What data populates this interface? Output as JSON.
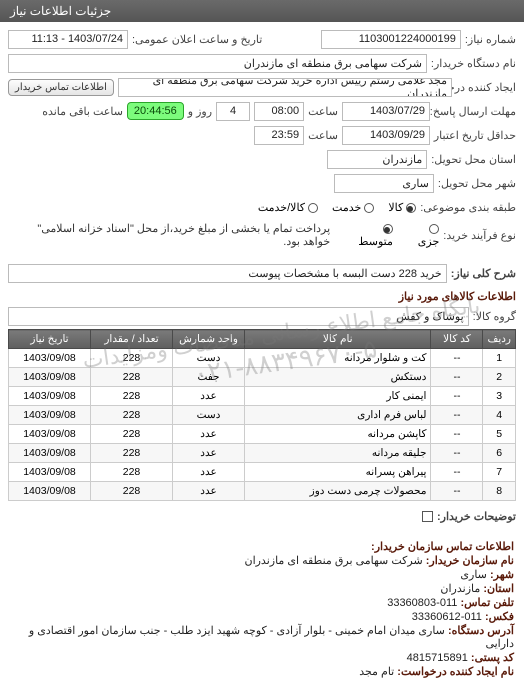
{
  "header": {
    "title": "جزئیات اطلاعات نیاز"
  },
  "top": {
    "need_no_label": "شماره نیاز:",
    "need_no": "1103001224000199",
    "announce_label": "تاریخ و ساعت اعلان عمومی:",
    "announce_value": "1403/07/24 - 11:13",
    "buyer_org_label": "نام دستگاه خریدار:",
    "buyer_org_value": "شرکت سهامی برق منطقه ای مازندران",
    "creator_label": "ایجاد کننده درخواست:",
    "creator_value": "مجد غلامی رستم رییس اداره خرید شرکت سهامی برق منطقه ای مازندران",
    "contact_btn": "اطلاعات تماس خریدار",
    "deadline_send_label": "مهلت ارسال پاسخ: تا تاریخ:",
    "deadline_date": "1403/07/29",
    "time_label": "ساعت",
    "deadline_time": "08:00",
    "remaining_days": "4",
    "remaining_days_suffix": "روز و",
    "remaining_time": "20:44:56",
    "remaining_suffix": "ساعت باقی مانده",
    "validity_label": "حداقل تاریخ اعتبار قیمت: تا تاریخ:",
    "validity_date": "1403/09/29",
    "validity_time": "23:59",
    "province_label": "استان محل تحویل:",
    "province_value": "مازندران",
    "city_label": "شهر محل تحویل:",
    "city_value": "ساری",
    "subject_cat_label": "طبقه بندی موضوعی:",
    "subject_opts": {
      "kala": "کالا",
      "khadamat": "خدمت",
      "kalakhadamat": "کالا/خدمت"
    },
    "buy_type_label": "نوع فرآیند خرید:",
    "buy_type_opts": {
      "jozi": "جزی",
      "motavaset": "متوسط"
    },
    "pay_note": "پرداخت تمام یا بخشی از مبلغ خرید،از محل \"اسناد خزانه اسلامی\" خواهد بود."
  },
  "need": {
    "title_label": "شرح کلی نیاز:",
    "title_value": "خرید 228 دست البسه با مشخصات پیوست",
    "goods_header": "اطلاعات کالاهای مورد نیاز",
    "group_label": "گروه کالا:",
    "group_value": "پوشاک و کفش",
    "table": {
      "columns": [
        "ردیف",
        "کد کالا",
        "نام کالا",
        "واحد شمارش",
        "تعداد / مقدار",
        "تاریخ نیاز"
      ],
      "col_widths": [
        "32px",
        "52px",
        "auto",
        "72px",
        "82px",
        "82px"
      ],
      "rows": [
        [
          "1",
          "--",
          "کت و شلوار مردانه",
          "دست",
          "228",
          "1403/09/08"
        ],
        [
          "2",
          "--",
          "دستکش",
          "جفت",
          "228",
          "1403/09/08"
        ],
        [
          "3",
          "--",
          "ایمنی کار",
          "عدد",
          "228",
          "1403/09/08"
        ],
        [
          "4",
          "--",
          "لباس فرم اداری",
          "دست",
          "228",
          "1403/09/08"
        ],
        [
          "5",
          "--",
          "کاپشن مردانه",
          "عدد",
          "228",
          "1403/09/08"
        ],
        [
          "6",
          "--",
          "جلیقه مردانه",
          "عدد",
          "228",
          "1403/09/08"
        ],
        [
          "7",
          "--",
          "پیراهن پسرانه",
          "عدد",
          "228",
          "1403/09/08"
        ],
        [
          "8",
          "--",
          "محصولات چرمی دست دوز",
          "عدد",
          "228",
          "1403/09/08"
        ]
      ]
    },
    "buyer_notes_label": "توضیحات خریدار:"
  },
  "watermark": {
    "line1": "پایگاه جامع اطلاع رسانی مناقصات ومزایدات",
    "line2": "۰۲۱-۸۸۳۴۹۶۷۰-۵"
  },
  "footer": {
    "heading": "اطلاعات تماس سازمان خریدار:",
    "org_name_label": "نام سازمان خریدار:",
    "org_name": "شرکت سهامی برق منطقه ای مازندران",
    "city_label": "شهر:",
    "city": "ساری",
    "province_label": "استان:",
    "province": "مازندران",
    "phone_label": "تلفن تماس:",
    "phone": "011-33360803",
    "fax_label": "فکس:",
    "fax": "011-33360612",
    "address_label": "آدرس دستگاه:",
    "address": "ساری میدان امام خمینی - بلوار آزادی - کوچه شهید ایزد طلب - جنب سازمان امور اقتصادی و دارایی",
    "postal_label": "کد پستی:",
    "postal": "4815715891",
    "req_creator_label": "نام ایجاد کننده درخواست:",
    "req_creator": "تام مجد"
  }
}
